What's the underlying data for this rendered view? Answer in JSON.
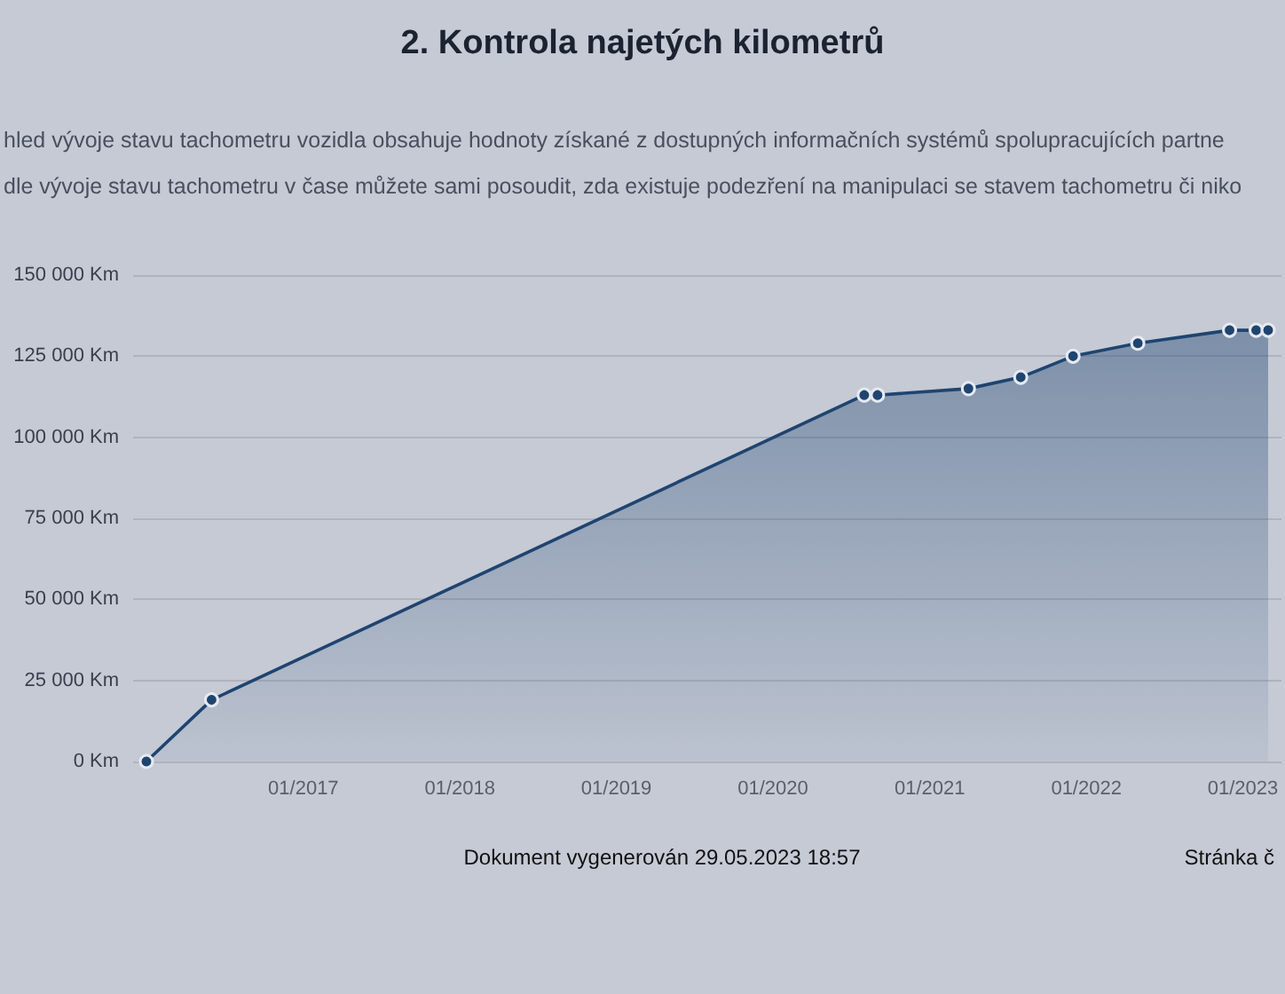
{
  "chart_data": {
    "type": "area",
    "title": "2. Kontrola najetých kilometrů",
    "subtitle": "hled vývoje stavu tachometru vozidla obsahuje hodnoty získané z dostupných informačních systémů spolupracujících partne\ndle vývoje stavu tachometru v čase můžete sami posoudit, zda existuje podezření na manipulaci se stavem tachometru či niko",
    "x": [
      "2016-01",
      "2016-06",
      "2020-08",
      "2020-09",
      "2021-04",
      "2021-08",
      "2021-12",
      "2022-05",
      "2022-12",
      "2023-02",
      "2023-03"
    ],
    "series": [
      {
        "color": "#1f4470",
        "values": [
          0,
          19000,
          113000,
          113000,
          115000,
          118500,
          125000,
          129000,
          133000,
          133000,
          133000
        ]
      }
    ],
    "xlim": [
      "2015-12",
      "2023-04"
    ],
    "xticks": [
      {
        "value": "2017-01",
        "label": "01/2017"
      },
      {
        "value": "2018-01",
        "label": "01/2018"
      },
      {
        "value": "2019-01",
        "label": "01/2019"
      },
      {
        "value": "2020-01",
        "label": "01/2020"
      },
      {
        "value": "2021-01",
        "label": "01/2021"
      },
      {
        "value": "2022-01",
        "label": "01/2022"
      },
      {
        "value": "2023-01",
        "label": "01/2023"
      }
    ],
    "ylim": [
      0,
      150000
    ],
    "yticks": [
      {
        "value": 0,
        "label": "0 Km"
      },
      {
        "value": 25000,
        "label": "25 000 Km"
      },
      {
        "value": 50000,
        "label": "50 000 Km"
      },
      {
        "value": 75000,
        "label": "75 000 Km"
      },
      {
        "value": 100000,
        "label": "100 000 Km"
      },
      {
        "value": 125000,
        "label": "125 000 Km"
      },
      {
        "value": 150000,
        "label": "150 000 Km"
      }
    ],
    "grid": "y",
    "marker": "circle",
    "line_style": "solid",
    "annotations": [
      "Dokument vygenerován 29.05.2023 18:57",
      "Stránka č"
    ]
  }
}
